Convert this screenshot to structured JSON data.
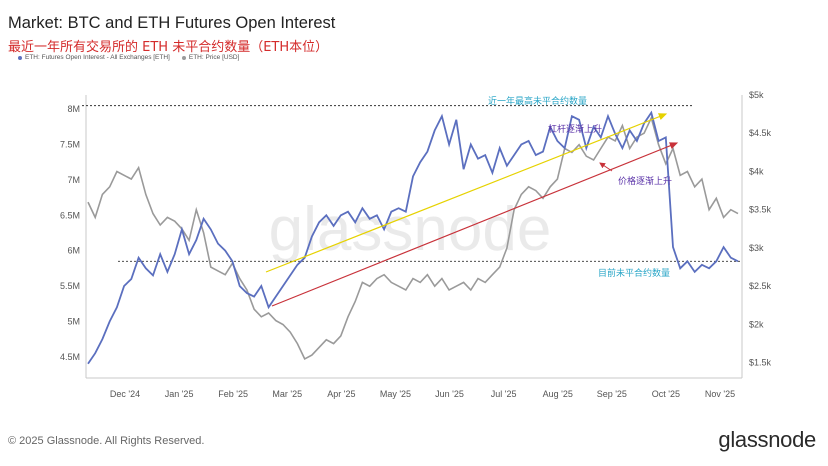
{
  "header": {
    "title": "Market: BTC and ETH Futures Open Interest",
    "subtitle": "最近一年所有交易所的 ETH 未平合约数量（ETH本位）"
  },
  "footer": {
    "copyright": "© 2025 Glassnode. All Rights Reserved.",
    "logo": "glassnode"
  },
  "watermark": "glassnode",
  "colors": {
    "oi": "#5b6fbf",
    "price": "#9a9a9a",
    "yellow_arrow": "#e6d200",
    "red_arrow": "#c8323a",
    "cyan_text": "#2aa6c7",
    "purple_text": "#5a32a8"
  },
  "chart_data": {
    "type": "line",
    "x_ticks": [
      "Dec '24",
      "Jan '25",
      "Feb '25",
      "Mar '25",
      "Apr '25",
      "May '25",
      "Jun '25",
      "Jul '25",
      "Aug '25",
      "Sep '25",
      "Oct '25",
      "Nov '25"
    ],
    "y_left_ticks": [
      "4.5M",
      "5M",
      "5.5M",
      "6M",
      "6.5M",
      "7M",
      "7.5M",
      "8M"
    ],
    "y_right_ticks": [
      "$1.5k",
      "$2k",
      "$2.5k",
      "$3k",
      "$3.5k",
      "$4k",
      "$4.5k",
      "$5k"
    ],
    "y_left_range": [
      4.2,
      8.2
    ],
    "y_right_range": [
      1300,
      5000
    ],
    "series": [
      {
        "name": "ETH: Futures Open Interest - All Exchanges [ETH]",
        "axis": "left",
        "values": [
          4.4,
          4.55,
          4.75,
          5.0,
          5.2,
          5.5,
          5.6,
          5.9,
          5.75,
          5.65,
          5.95,
          5.7,
          5.95,
          6.3,
          5.95,
          6.15,
          6.45,
          6.3,
          6.1,
          6.0,
          5.85,
          5.5,
          5.4,
          5.35,
          5.5,
          5.2,
          5.35,
          5.5,
          5.65,
          5.8,
          5.9,
          6.2,
          6.4,
          6.5,
          6.35,
          6.5,
          6.55,
          6.4,
          6.6,
          6.45,
          6.5,
          6.3,
          6.55,
          6.6,
          6.55,
          7.05,
          7.25,
          7.4,
          7.7,
          7.9,
          7.5,
          7.85,
          7.15,
          7.5,
          7.3,
          7.35,
          7.1,
          7.45,
          7.2,
          7.35,
          7.5,
          7.55,
          7.35,
          7.4,
          7.75,
          7.55,
          7.45,
          7.9,
          7.85,
          7.45,
          7.75,
          7.6,
          7.9,
          7.65,
          7.45,
          7.7,
          7.55,
          7.8,
          7.95,
          7.55,
          7.6,
          6.05,
          5.75,
          5.85,
          5.7,
          5.8,
          5.75,
          5.85,
          6.05,
          5.9,
          5.85
        ]
      },
      {
        "name": "ETH: Price [USD]",
        "axis": "right",
        "values": [
          3600,
          3400,
          3700,
          3800,
          4000,
          3950,
          3900,
          4050,
          3700,
          3450,
          3300,
          3400,
          3350,
          3250,
          3100,
          3500,
          3200,
          2750,
          2700,
          2650,
          2800,
          2600,
          2450,
          2200,
          2100,
          2150,
          2050,
          2000,
          1900,
          1750,
          1550,
          1600,
          1700,
          1800,
          1750,
          1850,
          2100,
          2300,
          2550,
          2500,
          2600,
          2650,
          2550,
          2500,
          2450,
          2600,
          2550,
          2650,
          2500,
          2600,
          2450,
          2500,
          2550,
          2450,
          2600,
          2550,
          2650,
          2750,
          3000,
          3500,
          3700,
          3800,
          3750,
          3650,
          3800,
          3900,
          4300,
          4250,
          4350,
          4200,
          4150,
          4300,
          4450,
          4400,
          4600,
          4300,
          4450,
          4500,
          4700,
          4350,
          4100,
          4300,
          3950,
          4000,
          3800,
          3900,
          3500,
          3650,
          3400,
          3500,
          3450
        ]
      }
    ],
    "reference_lines": [
      {
        "axis": "left",
        "value": 8.05
      },
      {
        "axis": "left",
        "value": 5.85
      }
    ],
    "annotations": [
      "近一年最高未平合约数量",
      "杠杆逐渐上升",
      "价格逐渐上升",
      "目前未平合约数量"
    ],
    "legend_position": "top-left",
    "grid": false
  }
}
